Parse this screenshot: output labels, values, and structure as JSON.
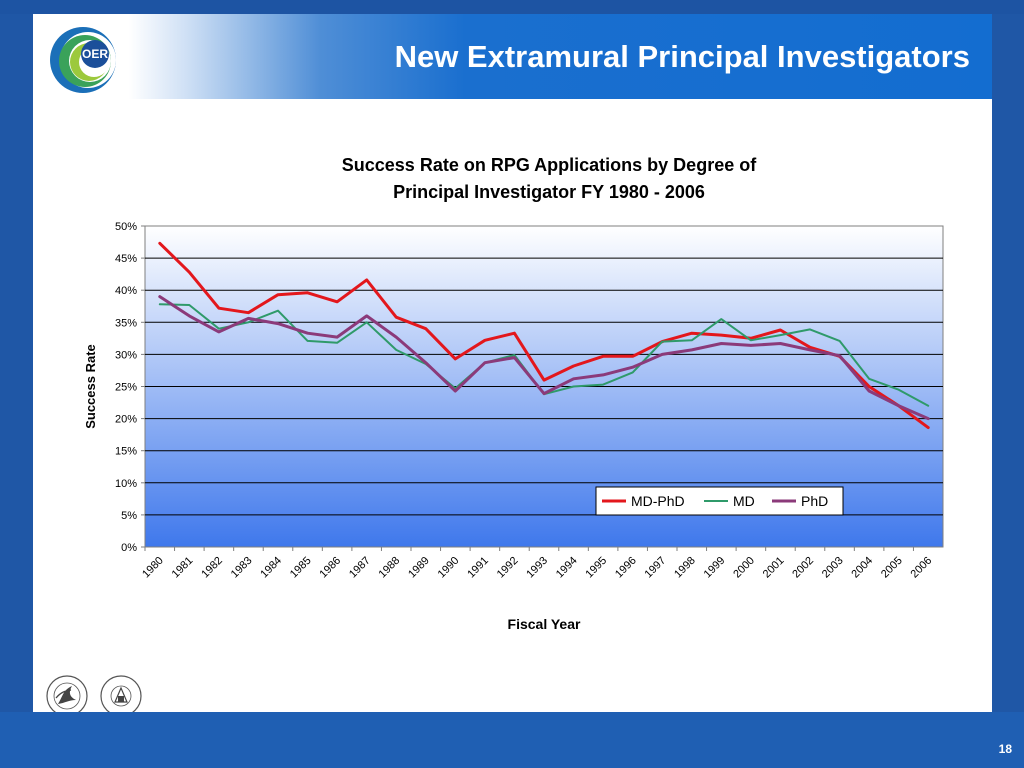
{
  "slide": {
    "title": "New Extramural Principal Investigators",
    "page_number": "18",
    "logo_text": "OER",
    "hhs_seal_icon": "hhs-seal-icon",
    "nih_seal_icon": "nih-seal-icon",
    "hhs_seal_text": "DEPARTMENT OF HEALTH & HUMAN SERVICES USA",
    "nih_seal_text": "NATIONAL INSTITUTES OF HEALTH"
  },
  "chart_data": {
    "type": "line",
    "title_line1": "Success Rate on RPG Applications by Degree of",
    "title_line2": "Principal Investigator FY 1980 - 2006",
    "xlabel": "Fiscal Year",
    "ylabel": "Success Rate",
    "ylim": [
      0,
      0.5
    ],
    "y_ticks": [
      "0%",
      "5%",
      "10%",
      "15%",
      "20%",
      "25%",
      "30%",
      "35%",
      "40%",
      "45%",
      "50%"
    ],
    "grid": true,
    "legend_position": "bottom-right",
    "categories": [
      "1980",
      "1981",
      "1982",
      "1983",
      "1984",
      "1985",
      "1986",
      "1987",
      "1988",
      "1989",
      "1990",
      "1991",
      "1992",
      "1993",
      "1994",
      "1995",
      "1996",
      "1997",
      "1998",
      "1999",
      "2000",
      "2001",
      "2002",
      "2003",
      "2004",
      "2005",
      "2006"
    ],
    "series": [
      {
        "name": "MD-PhD",
        "color": "#e3171c",
        "width": 3,
        "values": [
          0.473,
          0.428,
          0.372,
          0.365,
          0.393,
          0.396,
          0.382,
          0.416,
          0.358,
          0.34,
          0.293,
          0.322,
          0.333,
          0.26,
          0.282,
          0.297,
          0.297,
          0.32,
          0.333,
          0.33,
          0.325,
          0.338,
          0.311,
          0.297,
          0.25,
          0.22,
          0.186
        ]
      },
      {
        "name": "MD",
        "color": "#2f9a6a",
        "width": 2,
        "values": [
          0.378,
          0.377,
          0.34,
          0.35,
          0.368,
          0.321,
          0.318,
          0.35,
          0.307,
          0.285,
          0.247,
          0.287,
          0.299,
          0.238,
          0.25,
          0.253,
          0.272,
          0.32,
          0.322,
          0.355,
          0.322,
          0.33,
          0.339,
          0.321,
          0.262,
          0.245,
          0.22
        ]
      },
      {
        "name": "PhD",
        "color": "#8b3a7a",
        "width": 3,
        "values": [
          0.39,
          0.36,
          0.335,
          0.356,
          0.348,
          0.333,
          0.327,
          0.36,
          0.327,
          0.287,
          0.243,
          0.287,
          0.295,
          0.239,
          0.262,
          0.268,
          0.28,
          0.3,
          0.307,
          0.317,
          0.314,
          0.317,
          0.307,
          0.298,
          0.243,
          0.22,
          0.2
        ]
      }
    ]
  }
}
